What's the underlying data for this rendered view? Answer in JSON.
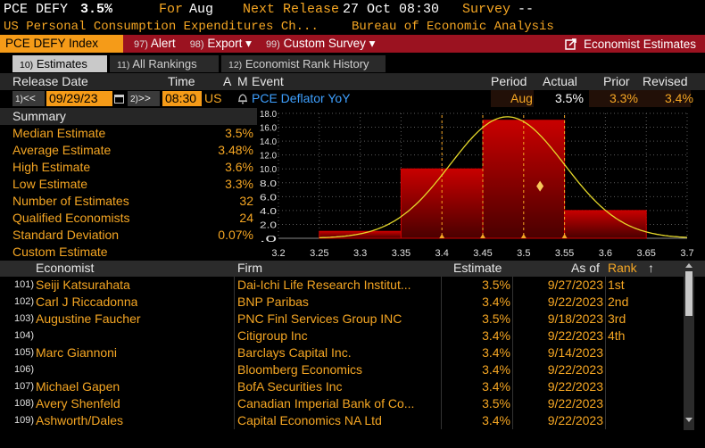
{
  "header": {
    "ticker_label": "PCE DEFY",
    "ticker_value": "3.5%",
    "for_label": "For",
    "for_value": "Aug",
    "next_release_label": "Next Release",
    "next_release_value": "27 Oct 08:30",
    "survey_label": "Survey",
    "survey_value": "--",
    "subtitle": "US Personal Consumption Expenditures Ch...",
    "source": "Bureau of Economic Analysis"
  },
  "toolbar": {
    "ticker": "PCE DEFY Index",
    "alert_num": "97)",
    "alert_label": "Alert",
    "export_num": "98)",
    "export_label": "Export",
    "custom_num": "99)",
    "custom_label": "Custom Survey",
    "economist_label": "Economist Estimates",
    "dropdown_glyph": "▾"
  },
  "tabs": [
    {
      "num": "10)",
      "label": "Estimates"
    },
    {
      "num": "11)",
      "label": "All Rankings"
    },
    {
      "num": "12)",
      "label": "Economist Rank History"
    }
  ],
  "columns": {
    "release_date": "Release Date",
    "time": "Time",
    "a": "A",
    "m": "M",
    "event": "Event",
    "period": "Period",
    "actual": "Actual",
    "prior": "Prior",
    "revised": "Revised"
  },
  "release": {
    "prev_num": "1)",
    "prev_glyph": "<<",
    "date": "09/29/23",
    "next_num": "2)",
    "next_glyph": ">>",
    "time": "08:30",
    "region": "US",
    "event": "PCE Deflator YoY",
    "period": "Aug",
    "actual": "3.5%",
    "prior": "3.3%",
    "revised": "3.4%"
  },
  "summary": {
    "title": "Summary",
    "rows": [
      {
        "label": "Median Estimate",
        "value": "3.5%"
      },
      {
        "label": "Average Estimate",
        "value": "3.48%"
      },
      {
        "label": "High Estimate",
        "value": "3.6%"
      },
      {
        "label": "Low Estimate",
        "value": "3.3%"
      },
      {
        "label": "Number of Estimates",
        "value": "32"
      },
      {
        "label": "Qualified Economists",
        "value": "24"
      },
      {
        "label": "Standard Deviation",
        "value": "0.07%"
      },
      {
        "label": "Custom Estimate",
        "value": ""
      }
    ]
  },
  "chart_data": {
    "type": "bar",
    "bins": [
      {
        "from": 3.25,
        "to": 3.35,
        "value": 1
      },
      {
        "from": 3.35,
        "to": 3.45,
        "value": 10
      },
      {
        "from": 3.45,
        "to": 3.55,
        "value": 17
      },
      {
        "from": 3.55,
        "to": 3.65,
        "value": 4
      }
    ],
    "x_ticks": [
      "3.2",
      "3.25",
      "3.3",
      "3.35",
      "3.4",
      "3.45",
      "3.5",
      "3.55",
      "3.6",
      "3.65",
      "3.7"
    ],
    "y_ticks": [
      "18.0",
      "16.0",
      "14.0",
      "12.0",
      "10.0",
      "8.0",
      "6.0",
      "4.0",
      "2.0",
      ".0"
    ],
    "xlim": [
      3.2,
      3.7
    ],
    "ylim": [
      0,
      18
    ],
    "vlines": [
      3.4,
      3.45,
      3.5,
      3.55
    ],
    "actual_marker": {
      "x": 3.52,
      "y": 7.5
    },
    "curve": {
      "type": "normal",
      "mean": 3.48,
      "peak": 17.5,
      "sd": 0.07
    },
    "bar_color": "#a00000",
    "curve_color": "#e6d92a",
    "vline_color": "#f5a623"
  },
  "table": {
    "headers": {
      "economist": "Economist",
      "firm": "Firm",
      "estimate": "Estimate",
      "asof": "As of",
      "rank": "Rank",
      "sort_glyph": "↑"
    },
    "rows": [
      {
        "num": "101)",
        "economist": "Seiji Katsurahata",
        "firm": "Dai-Ichi Life Research Institut...",
        "estimate": "3.5%",
        "asof": "9/27/2023",
        "rank": "1st"
      },
      {
        "num": "102)",
        "economist": "Carl J Riccadonna",
        "firm": "BNP Paribas",
        "estimate": "3.4%",
        "asof": "9/22/2023",
        "rank": "2nd"
      },
      {
        "num": "103)",
        "economist": "Augustine Faucher",
        "firm": "PNC Finl Services Group INC",
        "estimate": "3.5%",
        "asof": "9/18/2023",
        "rank": "3rd"
      },
      {
        "num": "104)",
        "economist": "",
        "firm": "Citigroup Inc",
        "estimate": "3.4%",
        "asof": "9/22/2023",
        "rank": "4th"
      },
      {
        "num": "105)",
        "economist": "Marc Giannoni",
        "firm": "Barclays Capital Inc.",
        "estimate": "3.4%",
        "asof": "9/14/2023",
        "rank": ""
      },
      {
        "num": "106)",
        "economist": "",
        "firm": "Bloomberg Economics",
        "estimate": "3.4%",
        "asof": "9/22/2023",
        "rank": ""
      },
      {
        "num": "107)",
        "economist": "Michael Gapen",
        "firm": "BofA Securities Inc",
        "estimate": "3.4%",
        "asof": "9/22/2023",
        "rank": ""
      },
      {
        "num": "108)",
        "economist": "Avery Shenfeld",
        "firm": "Canadian Imperial Bank of Co...",
        "estimate": "3.5%",
        "asof": "9/22/2023",
        "rank": ""
      },
      {
        "num": "109)",
        "economist": "Ashworth/Dales",
        "firm": "Capital Economics NA Ltd",
        "estimate": "3.4%",
        "asof": "9/22/2023",
        "rank": ""
      }
    ]
  },
  "colors": {
    "accent": "#f5a623",
    "toolbar": "#9b1220",
    "highlight": "#ffd300"
  }
}
